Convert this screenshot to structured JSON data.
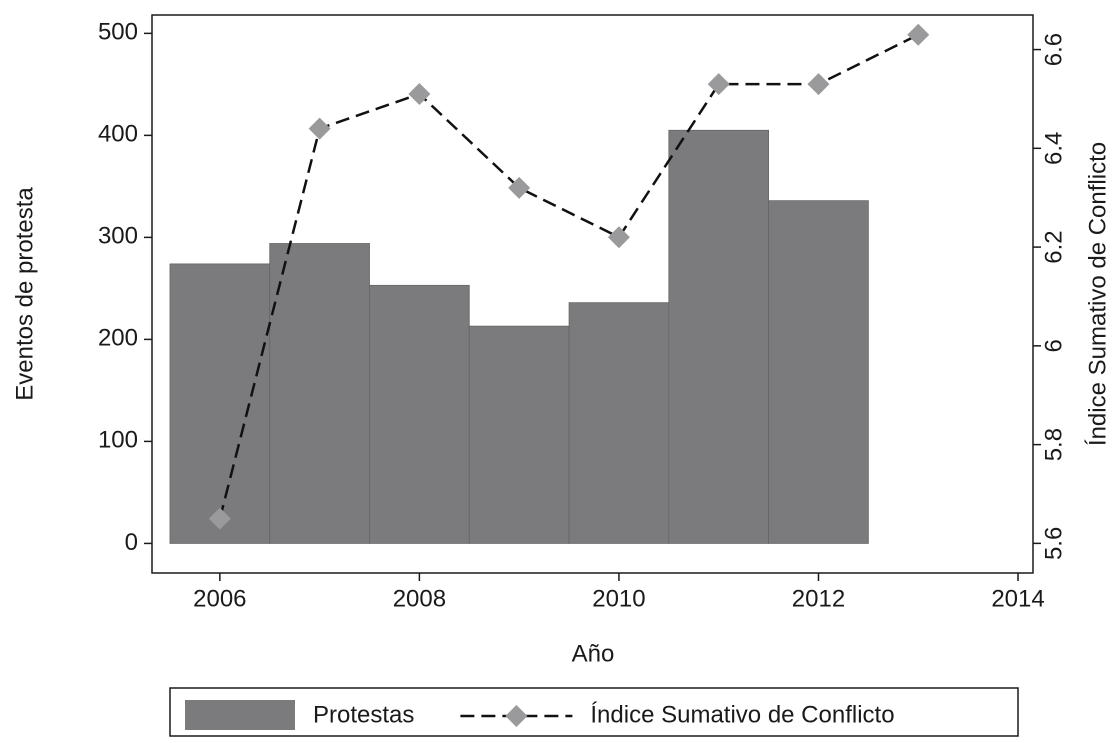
{
  "chart_data": {
    "type": "bar",
    "x_label": "Año",
    "y_label": "Eventos de protesta",
    "y2_label": "Índice Sumativo de Conflicto",
    "x": [
      2006,
      2007,
      2008,
      2009,
      2010,
      2011,
      2012,
      2013
    ],
    "series": [
      {
        "name": "Protestas",
        "type": "bar",
        "color": "#7b7b7e",
        "values": [
          274,
          294,
          253,
          213,
          236,
          405,
          336,
          null
        ]
      },
      {
        "name": "Índice Sumativo de Conflicto",
        "type": "line",
        "axis": "y2",
        "color": "#111111",
        "marker_color": "#9a9a9c",
        "values": [
          5.65,
          6.44,
          6.51,
          6.32,
          6.22,
          6.53,
          6.53,
          6.63
        ]
      }
    ],
    "xlim": [
      2005.32,
      2014.15
    ],
    "xticks": [
      2006,
      2008,
      2010,
      2012,
      2014
    ],
    "ylim": [
      -29,
      518
    ],
    "yticks": [
      0,
      100,
      200,
      300,
      400,
      500
    ],
    "y2lim": [
      5.54,
      6.67
    ],
    "y2ticks": [
      5.6,
      5.8,
      6,
      6.2,
      6.4,
      6.6
    ],
    "legend": "bottom"
  }
}
